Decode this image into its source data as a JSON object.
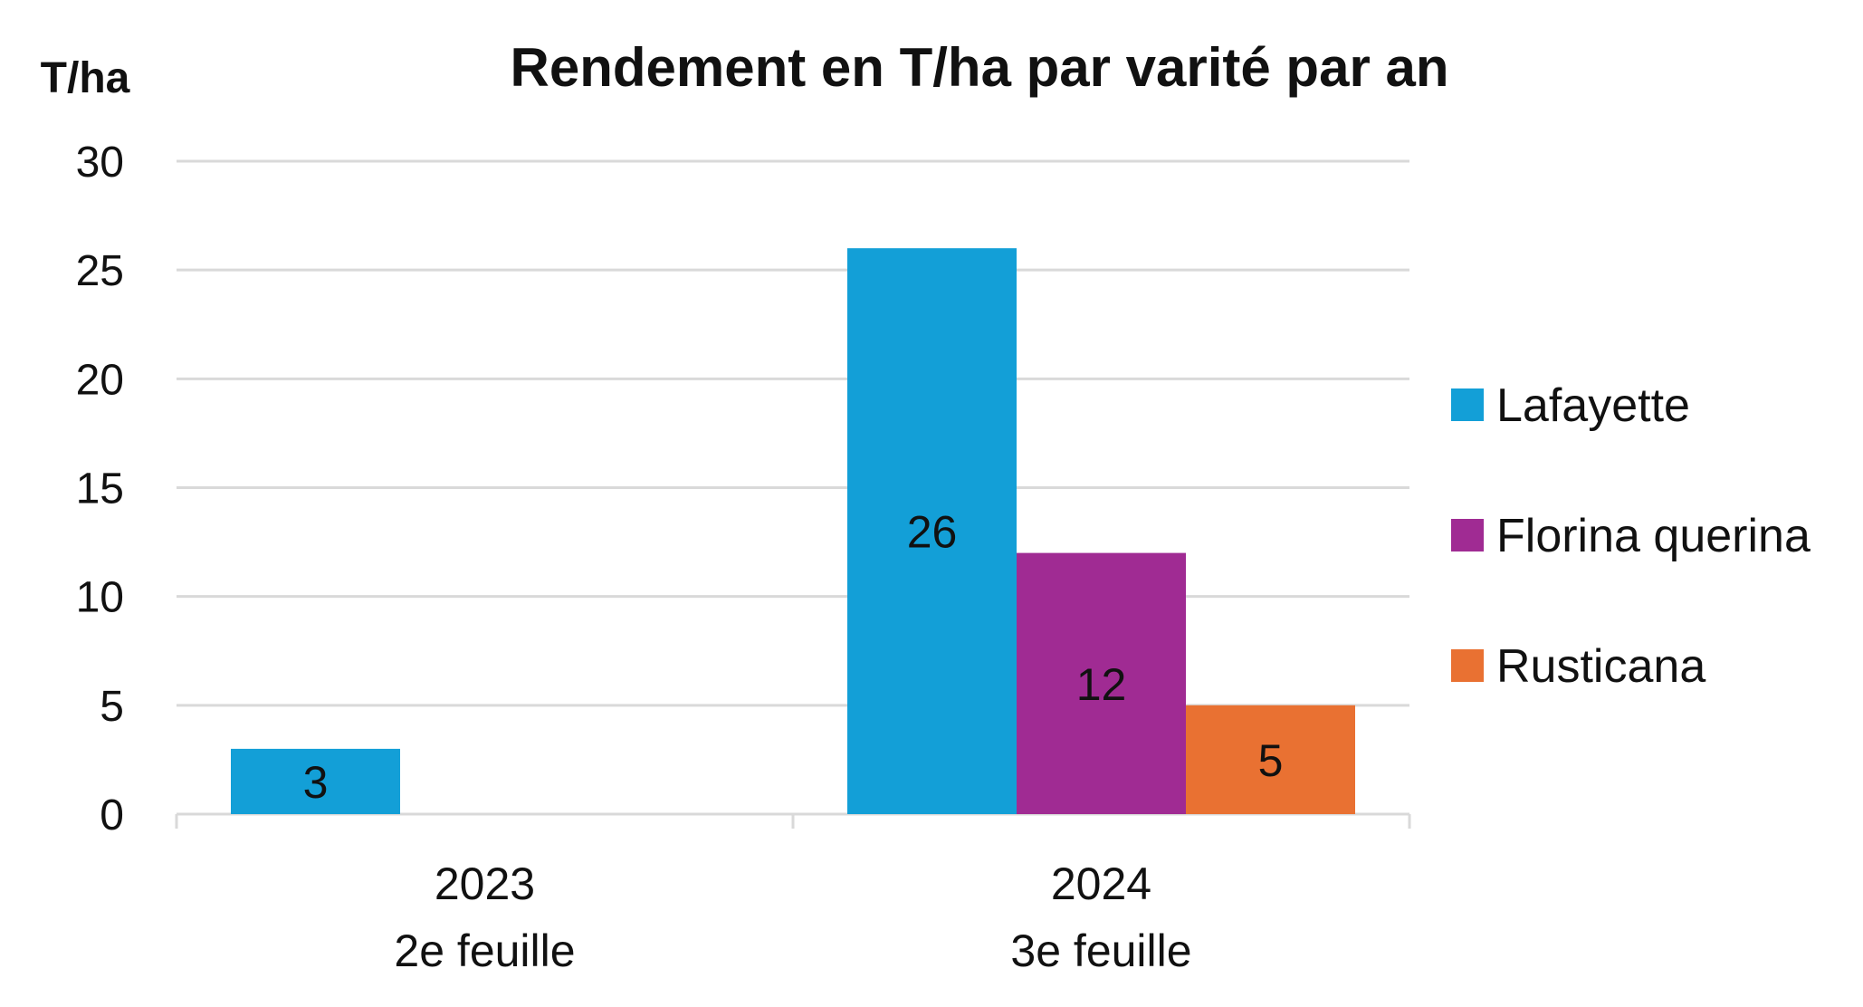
{
  "chart_data": {
    "type": "bar",
    "title": "Rendement en T/ha par varité par an",
    "ylabel": "T/ha",
    "xlabel": "",
    "ylim": [
      0,
      30
    ],
    "yticks": [
      0,
      5,
      10,
      15,
      20,
      25,
      30
    ],
    "grid": true,
    "legend_position": "right",
    "categories": [
      {
        "year": "2023",
        "sub": "2e feuille"
      },
      {
        "year": "2024",
        "sub": "3e feuille"
      }
    ],
    "series": [
      {
        "name": "Lafayette",
        "color": "#139FD7",
        "values": [
          3,
          26
        ]
      },
      {
        "name": "Florina querina",
        "color": "#A02B93",
        "values": [
          null,
          12
        ]
      },
      {
        "name": "Rusticana",
        "color": "#E97132",
        "values": [
          null,
          5
        ]
      }
    ]
  }
}
